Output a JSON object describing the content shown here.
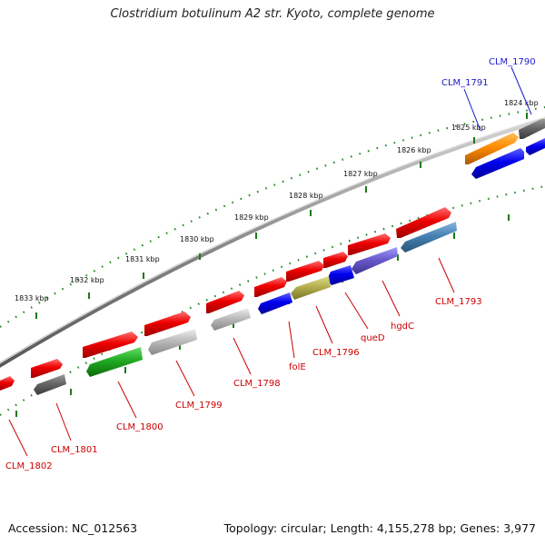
{
  "title": "Clostridium botulinum A2 str. Kyoto, complete genome",
  "footer": {
    "accession": "Accession: NC_012563",
    "summary": "Topology: circular; Length: 4,155,278 bp; Genes: 3,977"
  },
  "colors": {
    "label_forward": "#1a1acc",
    "label_reverse": "#cc0000",
    "tick": "#1a7a1a",
    "backbone": "#888888"
  },
  "kbp_labels": [
    "1824 kbp",
    "1825 kbp",
    "1826 kbp",
    "1827 kbp",
    "1828 kbp",
    "1829 kbp",
    "1830 kbp",
    "1831 kbp",
    "1832 kbp",
    "1833 kbp"
  ],
  "gene_labels": [
    {
      "text": "CLM_1790",
      "strand": "forward"
    },
    {
      "text": "CLM_1791",
      "strand": "forward"
    },
    {
      "text": "CLM_1793",
      "strand": "reverse"
    },
    {
      "text": "hgdC",
      "strand": "reverse"
    },
    {
      "text": "queD",
      "strand": "reverse"
    },
    {
      "text": "CLM_1796",
      "strand": "reverse"
    },
    {
      "text": "folE",
      "strand": "reverse"
    },
    {
      "text": "CLM_1798",
      "strand": "reverse"
    },
    {
      "text": "CLM_1799",
      "strand": "reverse"
    },
    {
      "text": "CLM_1800",
      "strand": "reverse"
    },
    {
      "text": "CLM_1801",
      "strand": "reverse"
    },
    {
      "text": "CLM_1802",
      "strand": "reverse"
    }
  ]
}
